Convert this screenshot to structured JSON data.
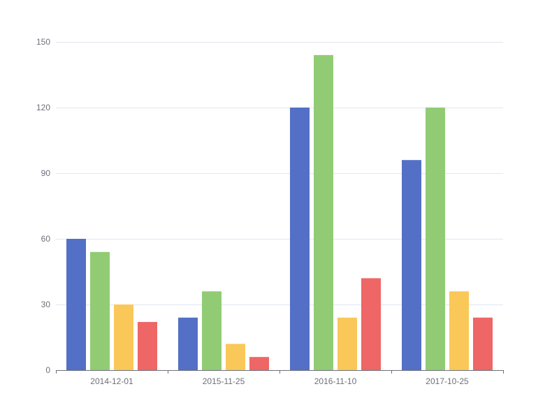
{
  "chart_data": {
    "type": "bar",
    "categories": [
      "2014-12-01",
      "2015-11-25",
      "2016-11-10",
      "2017-10-25"
    ],
    "series": [
      {
        "color": "#5470c6",
        "values": [
          60,
          24,
          120,
          96
        ]
      },
      {
        "color": "#91cc75",
        "values": [
          54,
          36,
          144,
          120
        ]
      },
      {
        "color": "#fac858",
        "values": [
          30,
          12,
          24,
          36
        ]
      },
      {
        "color": "#ee6666",
        "values": [
          22,
          6,
          42,
          24
        ]
      }
    ],
    "title": "",
    "xlabel": "",
    "ylabel": "",
    "ylim": [
      0,
      150
    ],
    "yticks": [
      0,
      30,
      60,
      90,
      120,
      150
    ],
    "grid": true,
    "legend": "none"
  }
}
